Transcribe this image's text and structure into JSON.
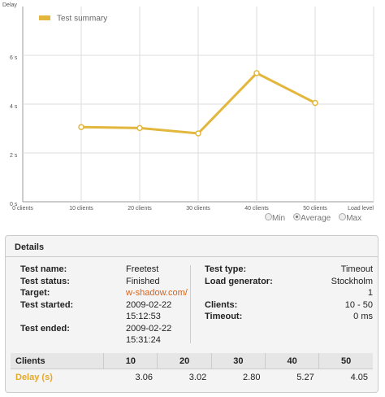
{
  "chart_data": {
    "type": "line",
    "y_label": "Delay",
    "xlim": [
      0,
      60
    ],
    "xticks": [
      {
        "value": 0,
        "label": "0 clients"
      },
      {
        "value": 10,
        "label": "10 clients"
      },
      {
        "value": 20,
        "label": "20 clients"
      },
      {
        "value": 30,
        "label": "30 clients"
      },
      {
        "value": 40,
        "label": "40 clients"
      },
      {
        "value": 50,
        "label": "50 clients"
      },
      {
        "value": 60,
        "label": "Load level"
      }
    ],
    "ylim": [
      0,
      8
    ],
    "yticks": [
      {
        "value": 0,
        "label": "0 s"
      },
      {
        "value": 2,
        "label": "2 s"
      },
      {
        "value": 4,
        "label": "4 s"
      },
      {
        "value": 6,
        "label": "6 s"
      }
    ],
    "grid": true,
    "legend": "top-left",
    "series": [
      {
        "name": "Test summary",
        "color": "#e3b73e",
        "x": [
          10,
          20,
          30,
          40,
          50
        ],
        "values": [
          3.06,
          3.02,
          2.8,
          5.27,
          4.05
        ],
        "value_labels": [
          "3.06",
          "3.02",
          "2.80",
          "5.27",
          "4.05"
        ]
      }
    ]
  },
  "controls": {
    "options": [
      {
        "label": "Min",
        "selected": false
      },
      {
        "label": "Average",
        "selected": true
      },
      {
        "label": "Max",
        "selected": false
      }
    ]
  },
  "details": {
    "title": "Details",
    "left": [
      {
        "label": "Test name:",
        "value": [
          "Freetest"
        ]
      },
      {
        "label": "Test status:",
        "value": [
          "Finished"
        ]
      },
      {
        "label": "Target:",
        "value": [
          "w-shadow.com/"
        ]
      },
      {
        "label": "Test started:",
        "value": [
          "2009-02-22",
          "15:12:53"
        ]
      },
      {
        "label": "Test ended:",
        "value": [
          "2009-02-22",
          "15:31:24"
        ]
      }
    ],
    "right": [
      {
        "label": "Test type:",
        "value": [
          "Timeout"
        ]
      },
      {
        "label": "Load generator:",
        "value": [
          "Stockholm",
          "1"
        ]
      },
      {
        "label": "Clients:",
        "value": [
          "10 - 50"
        ]
      },
      {
        "label": "Timeout:",
        "value": [
          "0 ms"
        ]
      }
    ],
    "row_labels": [
      "Clients",
      "Delay (s)"
    ]
  }
}
